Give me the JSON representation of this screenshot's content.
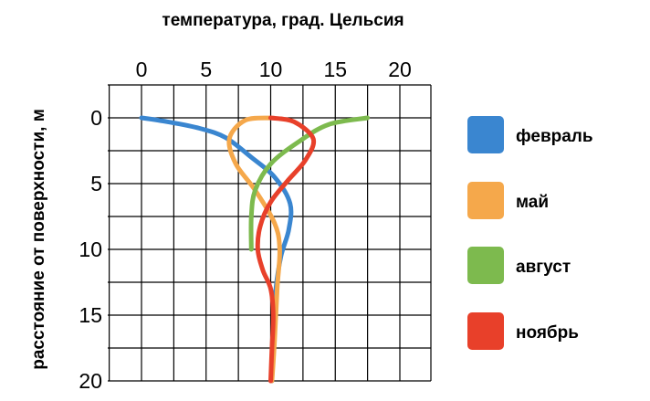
{
  "chart_data": {
    "type": "line",
    "xlabel": "температура, град. Цельсия",
    "ylabel": "расстояние от поверхности, м",
    "xlim": [
      0,
      20
    ],
    "ylim": [
      0,
      20
    ],
    "x_axis_position": "top",
    "y_axis_inverted": true,
    "x_ticks": [
      0,
      5,
      10,
      15,
      20
    ],
    "y_ticks": [
      0,
      5,
      10,
      15,
      20
    ],
    "grid": true,
    "legend_position": "right",
    "series": [
      {
        "name": "февраль",
        "color": "#3a86d0",
        "points": [
          [
            0,
            0
          ],
          [
            2,
            0.3
          ],
          [
            4.5,
            0.8
          ],
          [
            6.5,
            1.5
          ],
          [
            8.5,
            3
          ],
          [
            10.3,
            4.5
          ],
          [
            11.5,
            6.5
          ],
          [
            11.4,
            8.5
          ],
          [
            10.8,
            10.5
          ],
          [
            10.4,
            13
          ],
          [
            10.2,
            16
          ],
          [
            10.1,
            20
          ]
        ]
      },
      {
        "name": "май",
        "color": "#f5a84b",
        "points": [
          [
            10,
            0
          ],
          [
            8,
            0.2
          ],
          [
            6.8,
            1.6
          ],
          [
            7.3,
            3.5
          ],
          [
            8.8,
            5.5
          ],
          [
            10.3,
            8
          ],
          [
            10.7,
            10
          ],
          [
            10.5,
            13
          ],
          [
            10.3,
            17
          ],
          [
            10.1,
            20
          ]
        ]
      },
      {
        "name": "август",
        "color": "#7dba4e",
        "points": [
          [
            17.5,
            0
          ],
          [
            14.5,
            0.5
          ],
          [
            12.2,
            1.8
          ],
          [
            10,
            3.5
          ],
          [
            8.8,
            5.5
          ],
          [
            8.5,
            7.5
          ],
          [
            8.5,
            10
          ]
        ]
      },
      {
        "name": "ноябрь",
        "color": "#e8402a",
        "points": [
          [
            10,
            0
          ],
          [
            11.8,
            0.3
          ],
          [
            13.3,
            1.6
          ],
          [
            12.7,
            3.2
          ],
          [
            11.3,
            4.8
          ],
          [
            10,
            6.4
          ],
          [
            9.2,
            8.2
          ],
          [
            9,
            10
          ],
          [
            9.4,
            11.6
          ],
          [
            10,
            13
          ],
          [
            10.2,
            15
          ],
          [
            10.1,
            17.5
          ],
          [
            10,
            20
          ]
        ]
      }
    ]
  }
}
